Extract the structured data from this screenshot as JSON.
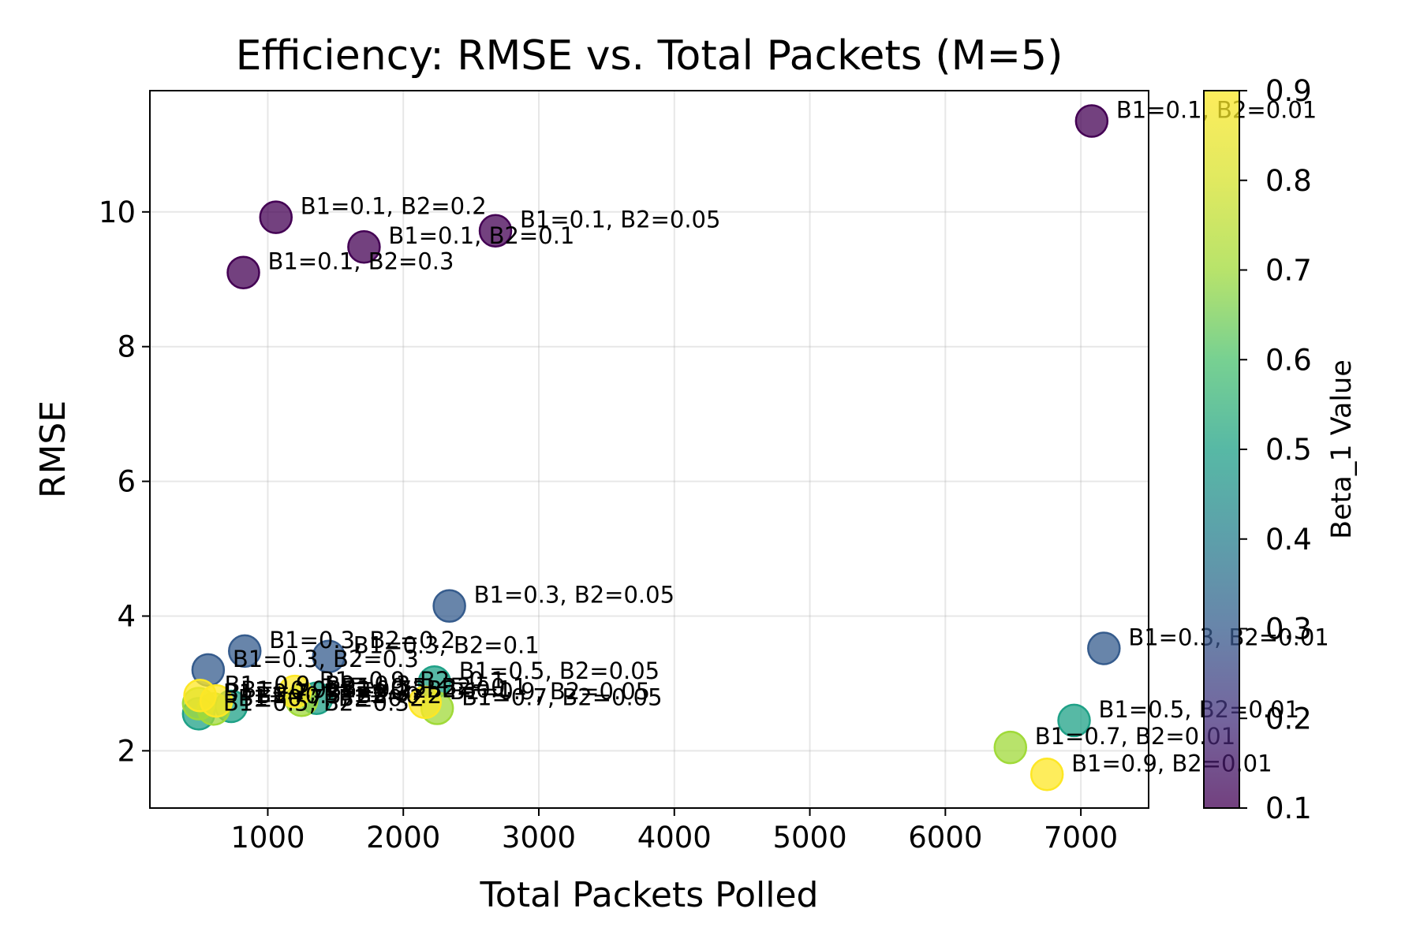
{
  "chart_data": {
    "type": "scatter",
    "title": "Efficiency: RMSE vs. Total Packets (M=5)",
    "xlabel": "Total Packets Polled",
    "ylabel": "RMSE",
    "xlim": [
      130,
      7500
    ],
    "ylim": [
      1.15,
      11.8
    ],
    "xticks": [
      1000,
      2000,
      3000,
      4000,
      5000,
      6000,
      7000
    ],
    "yticks": [
      2,
      4,
      6,
      8,
      10
    ],
    "grid": true,
    "colorbar": {
      "label": "Beta_1 Value",
      "range": [
        0.1,
        0.9
      ],
      "ticks": [
        0.1,
        0.2,
        0.3,
        0.4,
        0.5,
        0.6,
        0.7,
        0.8,
        0.9
      ],
      "colormap": "viridis"
    },
    "points": [
      {
        "x": 7080,
        "y": 11.35,
        "beta1": 0.1,
        "label": "B1=0.1, B2=0.01"
      },
      {
        "x": 1060,
        "y": 9.92,
        "beta1": 0.1,
        "label": "B1=0.1, B2=0.2"
      },
      {
        "x": 2680,
        "y": 9.72,
        "beta1": 0.1,
        "label": "B1=0.1, B2=0.05"
      },
      {
        "x": 1710,
        "y": 9.48,
        "beta1": 0.1,
        "label": "B1=0.1, B2=0.1"
      },
      {
        "x": 820,
        "y": 9.1,
        "beta1": 0.1,
        "label": "B1=0.1, B2=0.3"
      },
      {
        "x": 2340,
        "y": 4.15,
        "beta1": 0.3,
        "label": "B1=0.3, B2=0.05"
      },
      {
        "x": 7170,
        "y": 3.52,
        "beta1": 0.3,
        "label": "B1=0.3, B2=0.01"
      },
      {
        "x": 830,
        "y": 3.48,
        "beta1": 0.3,
        "label": "B1=0.3, B2=0.2"
      },
      {
        "x": 1450,
        "y": 3.4,
        "beta1": 0.3,
        "label": "B1=0.3, B2=0.1"
      },
      {
        "x": 560,
        "y": 3.2,
        "beta1": 0.3,
        "label": "B1=0.3, B2=0.3"
      },
      {
        "x": 2230,
        "y": 3.02,
        "beta1": 0.5,
        "label": "B1=0.5, B2=0.05"
      },
      {
        "x": 1360,
        "y": 2.78,
        "beta1": 0.5,
        "label": "B1=0.5, B2=0.1"
      },
      {
        "x": 730,
        "y": 2.66,
        "beta1": 0.5,
        "label": "B1=0.5, B2=0.2"
      },
      {
        "x": 490,
        "y": 2.55,
        "beta1": 0.5,
        "label": "B1=0.5, B2=0.3"
      },
      {
        "x": 6950,
        "y": 2.45,
        "beta1": 0.5,
        "label": "B1=0.5, B2=0.01"
      },
      {
        "x": 2250,
        "y": 2.63,
        "beta1": 0.7,
        "label": "B1=0.7, B2=0.05"
      },
      {
        "x": 1250,
        "y": 2.75,
        "beta1": 0.7,
        "label": "B1=0.7, B2=0.1"
      },
      {
        "x": 600,
        "y": 2.62,
        "beta1": 0.7,
        "label": "B1=0.7, B2=0.2"
      },
      {
        "x": 490,
        "y": 2.7,
        "beta1": 0.7,
        "label": "B1=0.7, B2=0.3"
      },
      {
        "x": 6480,
        "y": 2.05,
        "beta1": 0.7,
        "label": "B1=0.7, B2=0.01"
      },
      {
        "x": 2160,
        "y": 2.72,
        "beta1": 0.9,
        "label": "B1=0.9, B2=0.05"
      },
      {
        "x": 1200,
        "y": 2.88,
        "beta1": 0.9,
        "label": "B1=0.9, B2=0.1"
      },
      {
        "x": 620,
        "y": 2.74,
        "beta1": 0.9,
        "label": "B1=0.9, B2=0.2"
      },
      {
        "x": 500,
        "y": 2.82,
        "beta1": 0.9,
        "label": "B1=0.9, B2=0.3"
      },
      {
        "x": 6750,
        "y": 1.65,
        "beta1": 0.9,
        "label": "B1=0.9, B2=0.01"
      }
    ]
  }
}
